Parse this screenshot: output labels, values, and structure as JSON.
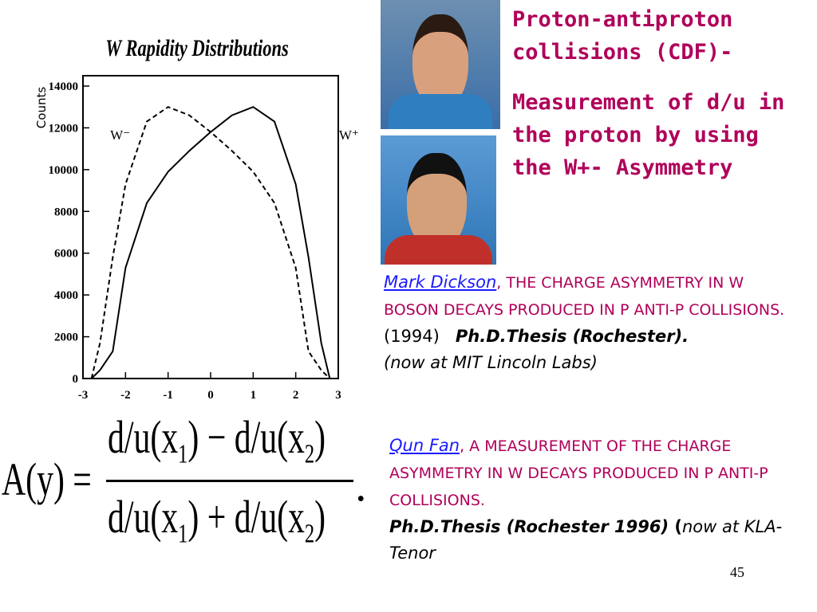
{
  "chart_data": {
    "type": "line",
    "title": "W Rapidity Distributions",
    "y_label": "Counts",
    "x": [
      -2.8,
      -2.6,
      -2.3,
      -2,
      -1.5,
      -1,
      -0.5,
      0,
      0.5,
      1,
      1.5,
      2,
      2.3,
      2.6,
      2.8
    ],
    "series": [
      {
        "name": "W⁻",
        "color": "#000000",
        "dash": true,
        "values": [
          0,
          1700,
          5800,
          9300,
          12300,
          13000,
          12600,
          11800,
          10900,
          9900,
          8400,
          5300,
          1300,
          400,
          0
        ]
      },
      {
        "name": "W⁺",
        "color": "#000000",
        "dash": false,
        "values": [
          0,
          400,
          1300,
          5300,
          8400,
          9900,
          10900,
          11800,
          12600,
          13000,
          12300,
          9300,
          5800,
          1700,
          0
        ]
      }
    ],
    "xlim": [
      -3,
      3
    ],
    "xticks": [
      -3,
      -2,
      -1,
      0,
      1,
      2,
      3
    ],
    "ylim": [
      0,
      14000
    ],
    "yticks": [
      0,
      2000,
      4000,
      6000,
      8000,
      10000,
      12000,
      14000
    ]
  },
  "heading": {
    "line1": "Proton-antiproton collisions (CDF)-",
    "line2": "Measurement of d/u in the proton by using the W+- Asymmetry"
  },
  "formula": {
    "lhs": "A(y) =",
    "num_a": "d/u(x",
    "num_a_sub": "1",
    "num_b": ") − d/u(x",
    "num_b_sub": "2",
    "num_c": ")",
    "den_a": "d/u(x",
    "den_a_sub": "1",
    "den_b": ") + d/u(x",
    "den_b_sub": "2",
    "den_c": ")",
    "end": "."
  },
  "references": [
    {
      "author": "Mark Dickson",
      "title": ", THE CHARGE ASYMMETRY IN W BOSON DECAYS PRODUCED IN P ANTI-P COLLISIONS.",
      "year": "(1994)",
      "thesis": "Ph.D.Thesis (Rochester).",
      "now": "(now at MIT Lincoln Labs)"
    },
    {
      "author": "Qun Fan",
      "title": ", A MEASUREMENT OF THE CHARGE ASYMMETRY IN W  DECAYS PRODUCED IN P ANTI-P COLLISIONS.",
      "thesis": "Ph.D.Thesis (Rochester 1996)",
      "paren": " (",
      "now": "now at KLA-Tenor"
    }
  ],
  "page_number": "45"
}
